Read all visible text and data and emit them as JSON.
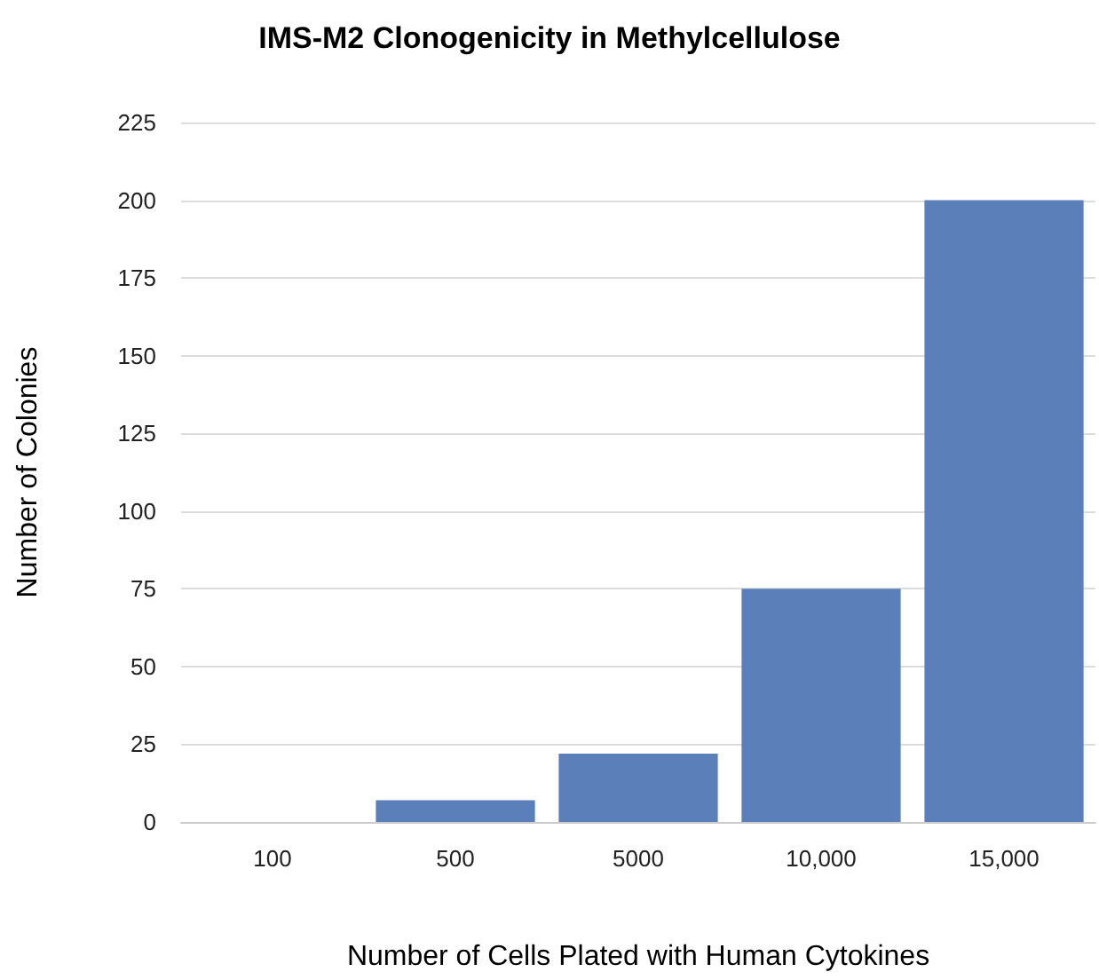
{
  "chart_data": {
    "type": "bar",
    "title": "IMS-M2 Clonogenicity in Methylcellulose",
    "xlabel": "Number of Cells Plated with Human Cytokines",
    "ylabel": "Number of Colonies",
    "categories": [
      "100",
      "500",
      "5000",
      "10,000",
      "15,000"
    ],
    "values": [
      0,
      7,
      22,
      75,
      200
    ],
    "color": "#5b7fb9",
    "ylim": [
      0,
      225
    ],
    "yticks": [
      0,
      25,
      50,
      75,
      100,
      125,
      150,
      175,
      200,
      225
    ],
    "grid": "y"
  }
}
